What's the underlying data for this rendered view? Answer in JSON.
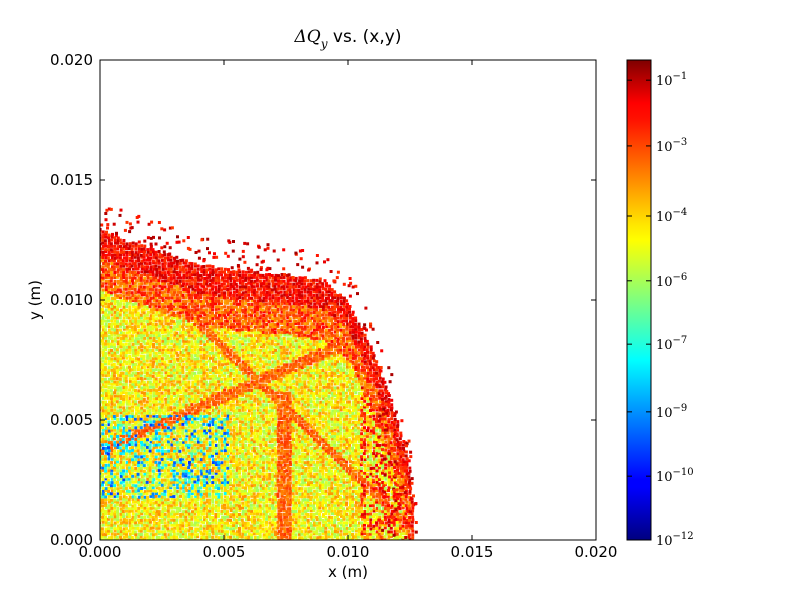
{
  "chart_data": {
    "type": "scatter",
    "title": {
      "prefix": "ΔQ",
      "subscript": "y",
      "suffix": " vs. (x,y)"
    },
    "xlabel": "x (m)",
    "ylabel": "y (m)",
    "xlim": [
      0.0,
      0.02
    ],
    "ylim": [
      0.0,
      0.02
    ],
    "x_ticks": [
      {
        "value": 0.0,
        "label": "0.000"
      },
      {
        "value": 0.005,
        "label": "0.005"
      },
      {
        "value": 0.01,
        "label": "0.010"
      },
      {
        "value": 0.015,
        "label": "0.015"
      },
      {
        "value": 0.02,
        "label": "0.020"
      }
    ],
    "y_ticks": [
      {
        "value": 0.0,
        "label": "0.000"
      },
      {
        "value": 0.005,
        "label": "0.005"
      },
      {
        "value": 0.01,
        "label": "0.010"
      },
      {
        "value": 0.015,
        "label": "0.015"
      },
      {
        "value": 0.02,
        "label": "0.020"
      }
    ],
    "grid": false,
    "colormap": "jet",
    "colorbar": {
      "scale": "log",
      "ticks": [
        {
          "exp": "-12",
          "label_base": "10",
          "label_exp": "−12",
          "frac": 0.0
        },
        {
          "exp": "-10",
          "label_base": "10",
          "label_exp": "−10",
          "frac": 0.133
        },
        {
          "exp": "-9",
          "label_base": "10",
          "label_exp": "−9",
          "frac": 0.267
        },
        {
          "exp": "-7",
          "label_base": "10",
          "label_exp": "−7",
          "frac": 0.408
        },
        {
          "exp": "-6",
          "label_base": "10",
          "label_exp": "−6",
          "frac": 0.54
        },
        {
          "exp": "-4",
          "label_base": "10",
          "label_exp": "−4",
          "frac": 0.675
        },
        {
          "exp": "-3",
          "label_base": "10",
          "label_exp": "−3",
          "frac": 0.821
        },
        {
          "exp": "-1",
          "label_base": "10",
          "label_exp": "−1",
          "frac": 0.958
        }
      ]
    },
    "boundary": {
      "x": [
        0.0,
        0.001,
        0.002,
        0.003,
        0.004,
        0.005,
        0.006,
        0.007,
        0.008,
        0.009,
        0.01,
        0.0105,
        0.011,
        0.0115,
        0.012,
        0.0125,
        0.0127
      ],
      "y": [
        0.013,
        0.0125,
        0.0122,
        0.0118,
        0.0115,
        0.0113,
        0.0112,
        0.0111,
        0.011,
        0.0108,
        0.01,
        0.009,
        0.008,
        0.0065,
        0.005,
        0.003,
        0.0005
      ]
    },
    "density_rule": "Points fill the region under the boundary; log10(ΔQy) ≈ -5 in the core (yellow/green), rising toward -1 (red) near the boundary; cyan/blue patches near x<0.005, y≈0.002–0.005."
  }
}
